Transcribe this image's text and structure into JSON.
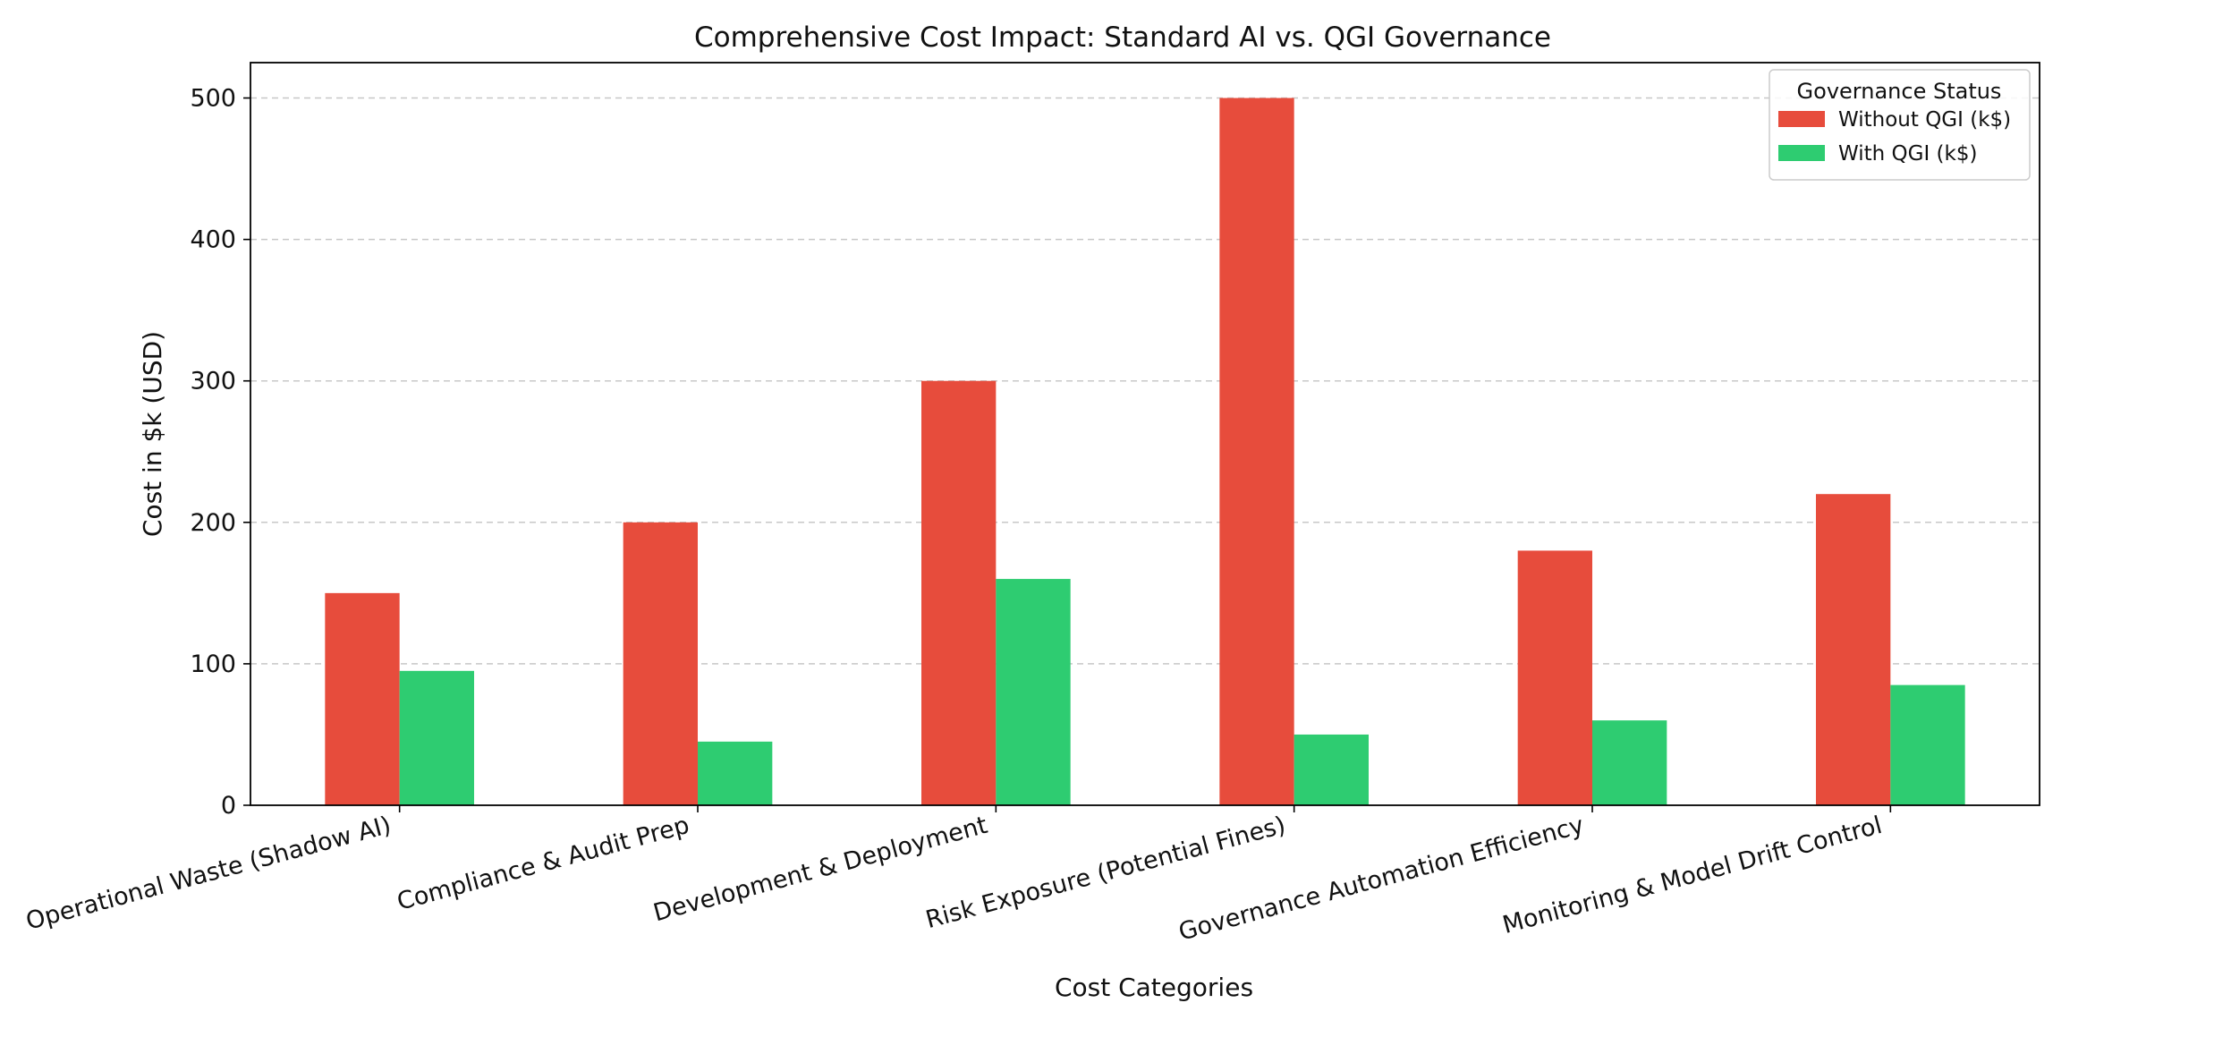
{
  "chart_data": {
    "type": "bar",
    "title": "Comprehensive Cost Impact: Standard AI vs. QGI Governance",
    "xlabel": "Cost Categories",
    "ylabel": "Cost in $k (USD)",
    "categories": [
      "Operational Waste (Shadow AI)",
      "Compliance & Audit Prep",
      "Development & Deployment",
      "Risk Exposure (Potential Fines)",
      "Governance Automation Efficiency",
      "Monitoring & Model Drift Control"
    ],
    "series": [
      {
        "name": "Without QGI (k$)",
        "color": "#e74c3c",
        "values": [
          150,
          200,
          300,
          500,
          180,
          220
        ]
      },
      {
        "name": "With QGI (k$)",
        "color": "#2ecc71",
        "values": [
          95,
          45,
          160,
          50,
          60,
          85
        ]
      }
    ],
    "ylim": [
      0,
      525
    ],
    "yticks": [
      "0",
      "100",
      "200",
      "300",
      "400",
      "500"
    ],
    "grid": true,
    "grid_axis": "y",
    "legend": {
      "title": "Governance Status",
      "position": "top-right"
    }
  }
}
